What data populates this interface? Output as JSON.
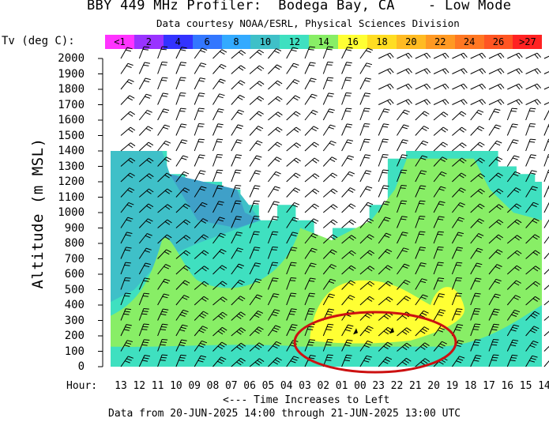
{
  "header": {
    "title": "BBY 449 MHz Profiler:  Bodega Bay, CA    - Low Mode",
    "subtitle": "Data courtesy NOAA/ESRL, Physical Sciences Division"
  },
  "legend": {
    "label": "Tv (deg C):",
    "bins": [
      {
        "text": "<1",
        "color": "#ff33ff"
      },
      {
        "text": "2",
        "color": "#9933ff"
      },
      {
        "text": "4",
        "color": "#3333ff"
      },
      {
        "text": "6",
        "color": "#3377ff"
      },
      {
        "text": "8",
        "color": "#33aaff"
      },
      {
        "text": "10",
        "color": "#3fc0c8"
      },
      {
        "text": "12",
        "color": "#3fe0c0"
      },
      {
        "text": "14",
        "color": "#88ee66"
      },
      {
        "text": "16",
        "color": "#ffff33"
      },
      {
        "text": "18",
        "color": "#ffdd22"
      },
      {
        "text": "20",
        "color": "#ffbb22"
      },
      {
        "text": "22",
        "color": "#ff9922"
      },
      {
        "text": "24",
        "color": "#ff7722"
      },
      {
        "text": "26",
        "color": "#ff5522"
      },
      {
        "text": ">27",
        "color": "#ff2222"
      }
    ]
  },
  "chart_data": {
    "type": "heatmap",
    "title": "BBY 449 MHz Profiler:  Bodega Bay, CA    - Low Mode",
    "ylabel": "Altitude (m MSL)",
    "xlabel": "<--- Time Increases to Left",
    "x_prefix": "Hour:",
    "ylim": [
      0,
      2000
    ],
    "yticks": [
      0,
      100,
      200,
      300,
      400,
      500,
      600,
      700,
      800,
      900,
      1000,
      1100,
      1200,
      1300,
      1400,
      1500,
      1600,
      1700,
      1800,
      1900,
      2000
    ],
    "hours": [
      "13",
      "12",
      "11",
      "10",
      "09",
      "08",
      "07",
      "06",
      "05",
      "04",
      "03",
      "02",
      "01",
      "00",
      "23",
      "22",
      "21",
      "20",
      "19",
      "18",
      "17",
      "16",
      "15",
      "14"
    ],
    "tv_top_height_m": [
      1400,
      1400,
      1400,
      1250,
      1200,
      1200,
      1150,
      1050,
      950,
      1050,
      950,
      800,
      900,
      900,
      1050,
      1350,
      1400,
      1400,
      1400,
      1400,
      1400,
      1300,
      1250,
      1200
    ],
    "tv_zones": [
      {
        "label": "10",
        "range_c": [
          10,
          12
        ],
        "hours": "13-00",
        "altitude_m": [
          400,
          1400
        ]
      },
      {
        "label": "12",
        "range_c": [
          12,
          14
        ],
        "hours": "all",
        "altitude_m": [
          0,
          1400
        ]
      },
      {
        "label": "14",
        "range_c": [
          14,
          16
        ],
        "hours": "all",
        "altitude_m": [
          100,
          900
        ]
      },
      {
        "label": "16",
        "range_c": [
          16,
          18
        ],
        "hours": "02-19",
        "altitude_m": [
          150,
          550
        ]
      }
    ],
    "wind_barbs": "profile every hour, 100 m spacing, up to 2000 m",
    "annotation": "red ellipse around 100-350 m, hours 03-20",
    "dateline": "Data from 20-JUN-2025 14:00 through 21-JUN-2025 13:00 UTC"
  }
}
